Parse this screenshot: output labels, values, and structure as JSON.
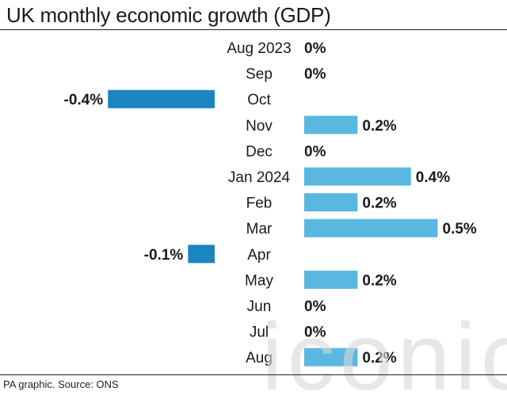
{
  "title": "UK monthly economic growth (GDP)",
  "source": "PA graphic. Source: ONS",
  "watermark_text": "iconic",
  "colors": {
    "positive": "#5ab8e0",
    "negative": "#1a86c0",
    "text": "#1a1a1a",
    "watermark": "#d8d8d8"
  },
  "chart_data": {
    "type": "bar",
    "orientation": "horizontal",
    "categories": [
      "Aug 2023",
      "Sep",
      "Oct",
      "Nov",
      "Dec",
      "Jan 2024",
      "Feb",
      "Mar",
      "Apr",
      "May",
      "Jun",
      "Jul",
      "Aug"
    ],
    "values": [
      0,
      0,
      -0.4,
      0.2,
      0,
      0.4,
      0.2,
      0.5,
      -0.1,
      0.2,
      0,
      0,
      0.2
    ],
    "data_labels": [
      "0%",
      "0%",
      "-0.4%",
      "0.2%",
      "0%",
      "0.4%",
      "0.2%",
      "0.5%",
      "-0.1%",
      "0.2%",
      "0%",
      "0%",
      "0.2%"
    ],
    "title": "UK monthly economic growth (GDP)",
    "xlabel": "",
    "ylabel": "",
    "grid": false,
    "legend": "none"
  }
}
